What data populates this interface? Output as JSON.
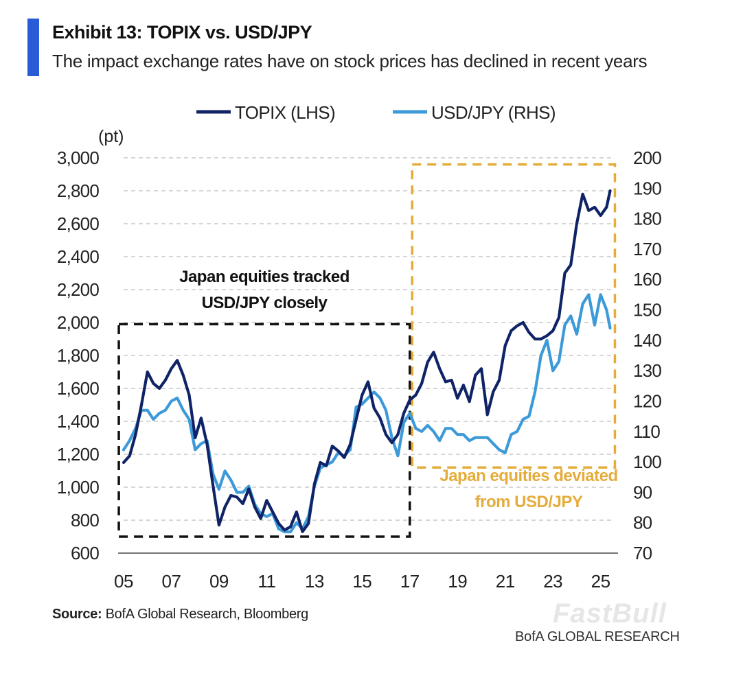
{
  "header": {
    "title": "Exhibit 13: TOPIX vs. USD/JPY",
    "subtitle": "The impact exchange rates have on stock prices has declined in recent years"
  },
  "footer": {
    "source_label": "Source:",
    "source_text": "BofA Global Research, Bloomberg",
    "brand": "BofA GLOBAL RESEARCH",
    "watermark": "FastBull"
  },
  "colors": {
    "topix": "#0f2366",
    "usdjpy": "#3d9ad9",
    "box_left": "#111111",
    "box_right": "#e5ac3b",
    "annotation_right": "#e5ac3b",
    "grid": "#bdbdbd"
  },
  "chart_data": {
    "type": "line",
    "title": "TOPIX vs. USD/JPY",
    "left_axis_unit": "(pt)",
    "xlim": [
      2005,
      2025.5
    ],
    "x_tick_values": [
      2005,
      2007,
      2009,
      2011,
      2013,
      2015,
      2017,
      2019,
      2021,
      2023,
      2025
    ],
    "x_tick_labels": [
      "05",
      "07",
      "09",
      "11",
      "13",
      "15",
      "17",
      "19",
      "21",
      "23",
      "25"
    ],
    "ylim_left": [
      600,
      3000
    ],
    "y_ticks_left": [
      600,
      800,
      1000,
      1200,
      1400,
      1600,
      1800,
      2000,
      2200,
      2400,
      2600,
      2800,
      3000
    ],
    "y_tick_labels_left": [
      "600",
      "800",
      "1,000",
      "1,200",
      "1,400",
      "1,600",
      "1,800",
      "2,000",
      "2,200",
      "2,400",
      "2,600",
      "2,800",
      "3,000"
    ],
    "ylim_right": [
      70,
      200
    ],
    "y_ticks_right": [
      70,
      80,
      90,
      100,
      110,
      120,
      130,
      140,
      150,
      160,
      170,
      180,
      190,
      200
    ],
    "y_tick_labels_right": [
      "70",
      "80",
      "90",
      "100",
      "110",
      "120",
      "130",
      "140",
      "150",
      "160",
      "170",
      "180",
      "190",
      "200"
    ],
    "legend": {
      "position": "top-center"
    },
    "series": [
      {
        "name": "TOPIX (LHS)",
        "axis": "left",
        "x": [
          2005.0,
          2005.25,
          2005.5,
          2005.75,
          2006.0,
          2006.25,
          2006.5,
          2006.75,
          2007.0,
          2007.25,
          2007.5,
          2007.75,
          2008.0,
          2008.25,
          2008.5,
          2008.75,
          2009.0,
          2009.25,
          2009.5,
          2009.75,
          2010.0,
          2010.25,
          2010.5,
          2010.75,
          2011.0,
          2011.25,
          2011.5,
          2011.75,
          2012.0,
          2012.25,
          2012.5,
          2012.75,
          2013.0,
          2013.25,
          2013.5,
          2013.75,
          2014.0,
          2014.25,
          2014.5,
          2014.75,
          2015.0,
          2015.25,
          2015.5,
          2015.75,
          2016.0,
          2016.25,
          2016.5,
          2016.75,
          2017.0,
          2017.25,
          2017.5,
          2017.75,
          2018.0,
          2018.25,
          2018.5,
          2018.75,
          2019.0,
          2019.25,
          2019.5,
          2019.75,
          2020.0,
          2020.25,
          2020.5,
          2020.75,
          2021.0,
          2021.25,
          2021.5,
          2021.75,
          2022.0,
          2022.25,
          2022.5,
          2022.75,
          2023.0,
          2023.25,
          2023.5,
          2023.75,
          2024.0,
          2024.25,
          2024.5,
          2024.75,
          2025.0,
          2025.25,
          2025.4
        ],
        "values": [
          1150,
          1190,
          1320,
          1500,
          1700,
          1630,
          1600,
          1650,
          1720,
          1770,
          1680,
          1560,
          1300,
          1420,
          1260,
          1010,
          770,
          880,
          950,
          940,
          900,
          990,
          880,
          810,
          920,
          850,
          780,
          740,
          760,
          850,
          730,
          780,
          1020,
          1150,
          1130,
          1250,
          1220,
          1180,
          1260,
          1410,
          1560,
          1640,
          1480,
          1420,
          1320,
          1270,
          1320,
          1450,
          1530,
          1560,
          1630,
          1760,
          1820,
          1720,
          1640,
          1650,
          1540,
          1620,
          1520,
          1680,
          1720,
          1440,
          1580,
          1650,
          1860,
          1950,
          1980,
          2000,
          1940,
          1900,
          1900,
          1920,
          1950,
          2030,
          2300,
          2350,
          2600,
          2780,
          2680,
          2700,
          2650,
          2700,
          2800
        ]
      },
      {
        "name": "USD/JPY (RHS)",
        "axis": "right",
        "x": [
          2005.0,
          2005.25,
          2005.5,
          2005.75,
          2006.0,
          2006.25,
          2006.5,
          2006.75,
          2007.0,
          2007.25,
          2007.5,
          2007.75,
          2008.0,
          2008.25,
          2008.5,
          2008.75,
          2009.0,
          2009.25,
          2009.5,
          2009.75,
          2010.0,
          2010.25,
          2010.5,
          2010.75,
          2011.0,
          2011.25,
          2011.5,
          2011.75,
          2012.0,
          2012.25,
          2012.5,
          2012.75,
          2013.0,
          2013.25,
          2013.5,
          2013.75,
          2014.0,
          2014.25,
          2014.5,
          2014.75,
          2015.0,
          2015.25,
          2015.5,
          2015.75,
          2016.0,
          2016.25,
          2016.5,
          2016.75,
          2017.0,
          2017.25,
          2017.5,
          2017.75,
          2018.0,
          2018.25,
          2018.5,
          2018.75,
          2019.0,
          2019.25,
          2019.5,
          2019.75,
          2020.0,
          2020.25,
          2020.5,
          2020.75,
          2021.0,
          2021.25,
          2021.5,
          2021.75,
          2022.0,
          2022.25,
          2022.5,
          2022.75,
          2023.0,
          2023.25,
          2023.5,
          2023.75,
          2024.0,
          2024.25,
          2024.5,
          2024.75,
          2025.0,
          2025.25,
          2025.4
        ],
        "values": [
          104,
          107,
          111,
          117,
          117,
          114,
          116,
          117,
          120,
          121,
          117,
          114,
          104,
          106,
          107,
          96,
          91,
          97,
          94,
          90,
          90,
          92,
          86,
          83,
          82,
          83,
          78,
          77,
          77,
          80,
          78,
          82,
          92,
          98,
          99,
          100,
          103,
          102,
          104,
          118,
          119,
          121,
          123,
          121,
          117,
          108,
          102,
          113,
          116,
          111,
          110,
          112,
          110,
          107,
          111,
          111,
          109,
          109,
          107,
          108,
          108,
          108,
          106,
          104,
          103,
          109,
          110,
          114,
          115,
          123,
          135,
          140,
          130,
          133,
          145,
          148,
          142,
          152,
          155,
          145,
          155,
          150,
          144
        ]
      }
    ],
    "annotations": [
      {
        "text_line1": "Japan equities tracked",
        "text_line2": "USD/JPY closely",
        "box_x": [
          2004.8,
          2017.0
        ],
        "box_y_left": [
          700,
          1990
        ],
        "box_style": "dashed-black"
      },
      {
        "text_line1": "Japan equities deviated",
        "text_line2": "from USD/JPY",
        "box_x": [
          2017.1,
          2025.6
        ],
        "box_y_left": [
          1120,
          2960
        ],
        "box_style": "dashed-gold"
      }
    ]
  }
}
